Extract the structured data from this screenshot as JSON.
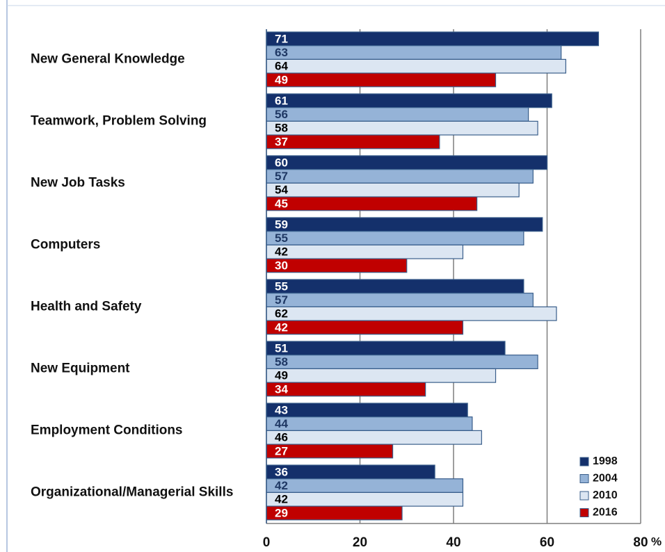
{
  "chart_data": {
    "type": "bar",
    "orientation": "horizontal",
    "categories": [
      "New General Knowledge",
      "Teamwork, Problem Solving",
      "New Job Tasks",
      "Computers",
      "Health and Safety",
      "New Equipment",
      "Employment Conditions",
      "Organizational/Managerial Skills"
    ],
    "series": [
      {
        "name": "1998",
        "color": "#14306b",
        "label_color": "#ffffff",
        "values": [
          71,
          61,
          60,
          59,
          55,
          51,
          43,
          36
        ]
      },
      {
        "name": "2004",
        "color": "#95b3d7",
        "label_color": "#1f3864",
        "values": [
          63,
          56,
          57,
          55,
          57,
          58,
          44,
          42
        ]
      },
      {
        "name": "2010",
        "color": "#dce6f2",
        "label_color": "#000000",
        "values": [
          64,
          58,
          54,
          42,
          62,
          49,
          46,
          42
        ]
      },
      {
        "name": "2016",
        "color": "#c00000",
        "label_color": "#ffffff",
        "values": [
          49,
          37,
          45,
          30,
          42,
          34,
          27,
          29
        ]
      }
    ],
    "xlim": [
      0,
      80
    ],
    "xticks": [
      0,
      20,
      40,
      60,
      80
    ],
    "x_label": "%",
    "grid": true,
    "legend": "bottom-right"
  }
}
